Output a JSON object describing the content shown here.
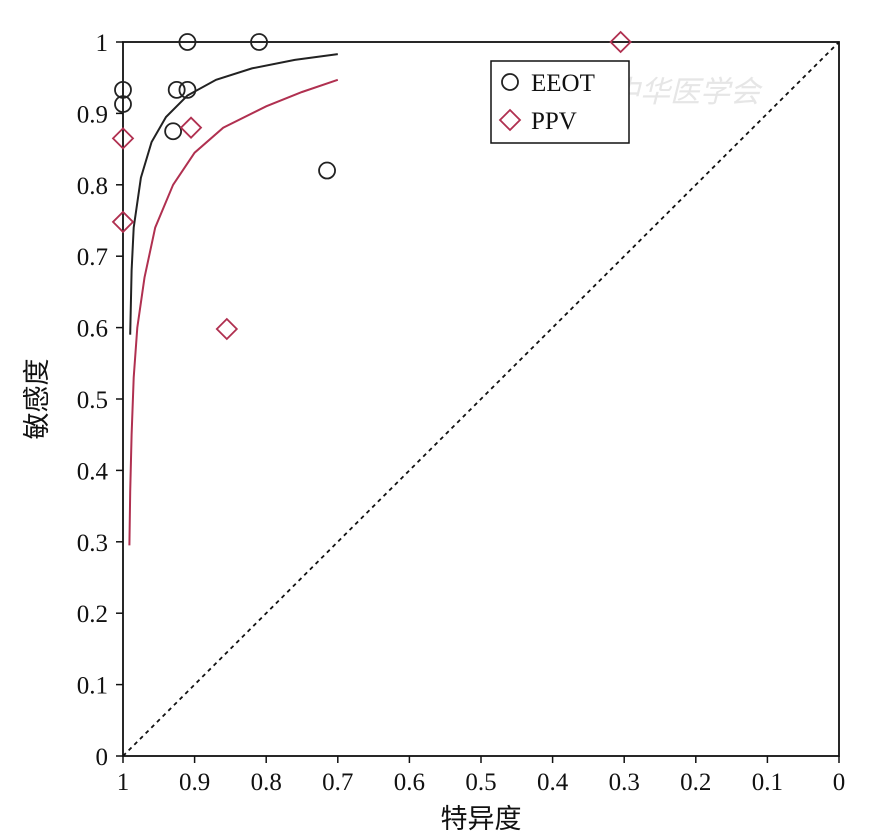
{
  "chart_data": {
    "type": "scatter",
    "xlabel": "特异度",
    "ylabel": "敏感度",
    "xlim": [
      1,
      0
    ],
    "ylim": [
      0,
      1
    ],
    "x_ticks": [
      1,
      0.9,
      0.8,
      0.7,
      0.6,
      0.5,
      0.4,
      0.3,
      0.2,
      0.1,
      0
    ],
    "y_ticks": [
      0,
      0.1,
      0.2,
      0.3,
      0.4,
      0.5,
      0.6,
      0.7,
      0.8,
      0.9,
      1
    ],
    "x_tick_labels": [
      "1",
      "0.9",
      "0.8",
      "0.7",
      "0.6",
      "0.5",
      "0.4",
      "0.3",
      "0.2",
      "0.1",
      "0"
    ],
    "y_tick_labels": [
      "0",
      "0.1",
      "0.2",
      "0.3",
      "0.4",
      "0.5",
      "0.6",
      "0.7",
      "0.8",
      "0.9",
      "1"
    ],
    "grid": false,
    "legend_position": "top-right",
    "reference_line": {
      "style": "dashed",
      "x": [
        1,
        0
      ],
      "y": [
        0,
        1
      ]
    },
    "series": [
      {
        "name": "EEOT",
        "marker": "circle",
        "color": "#222222",
        "points": [
          {
            "x": 0.91,
            "y": 1.0
          },
          {
            "x": 0.81,
            "y": 1.0
          },
          {
            "x": 1.0,
            "y": 0.933
          },
          {
            "x": 1.0,
            "y": 0.913
          },
          {
            "x": 0.925,
            "y": 0.933
          },
          {
            "x": 0.91,
            "y": 0.933
          },
          {
            "x": 0.93,
            "y": 0.875
          },
          {
            "x": 0.715,
            "y": 0.82
          }
        ],
        "curve": [
          {
            "x": 0.99,
            "y": 0.59
          },
          {
            "x": 0.988,
            "y": 0.68
          },
          {
            "x": 0.985,
            "y": 0.74
          },
          {
            "x": 0.975,
            "y": 0.81
          },
          {
            "x": 0.96,
            "y": 0.86
          },
          {
            "x": 0.94,
            "y": 0.895
          },
          {
            "x": 0.91,
            "y": 0.925
          },
          {
            "x": 0.87,
            "y": 0.947
          },
          {
            "x": 0.82,
            "y": 0.963
          },
          {
            "x": 0.76,
            "y": 0.975
          },
          {
            "x": 0.7,
            "y": 0.983
          }
        ]
      },
      {
        "name": "PPV",
        "marker": "diamond",
        "color": "#b03050",
        "points": [
          {
            "x": 0.305,
            "y": 1.0
          },
          {
            "x": 1.0,
            "y": 0.865
          },
          {
            "x": 0.905,
            "y": 0.88
          },
          {
            "x": 1.0,
            "y": 0.748
          },
          {
            "x": 0.855,
            "y": 0.598
          }
        ],
        "curve": [
          {
            "x": 0.991,
            "y": 0.295
          },
          {
            "x": 0.99,
            "y": 0.37
          },
          {
            "x": 0.988,
            "y": 0.45
          },
          {
            "x": 0.985,
            "y": 0.53
          },
          {
            "x": 0.98,
            "y": 0.6
          },
          {
            "x": 0.97,
            "y": 0.67
          },
          {
            "x": 0.955,
            "y": 0.74
          },
          {
            "x": 0.93,
            "y": 0.8
          },
          {
            "x": 0.9,
            "y": 0.845
          },
          {
            "x": 0.86,
            "y": 0.88
          },
          {
            "x": 0.8,
            "y": 0.91
          },
          {
            "x": 0.75,
            "y": 0.93
          },
          {
            "x": 0.7,
            "y": 0.947
          }
        ]
      }
    ]
  },
  "watermark": {
    "text": "中华医学会"
  }
}
